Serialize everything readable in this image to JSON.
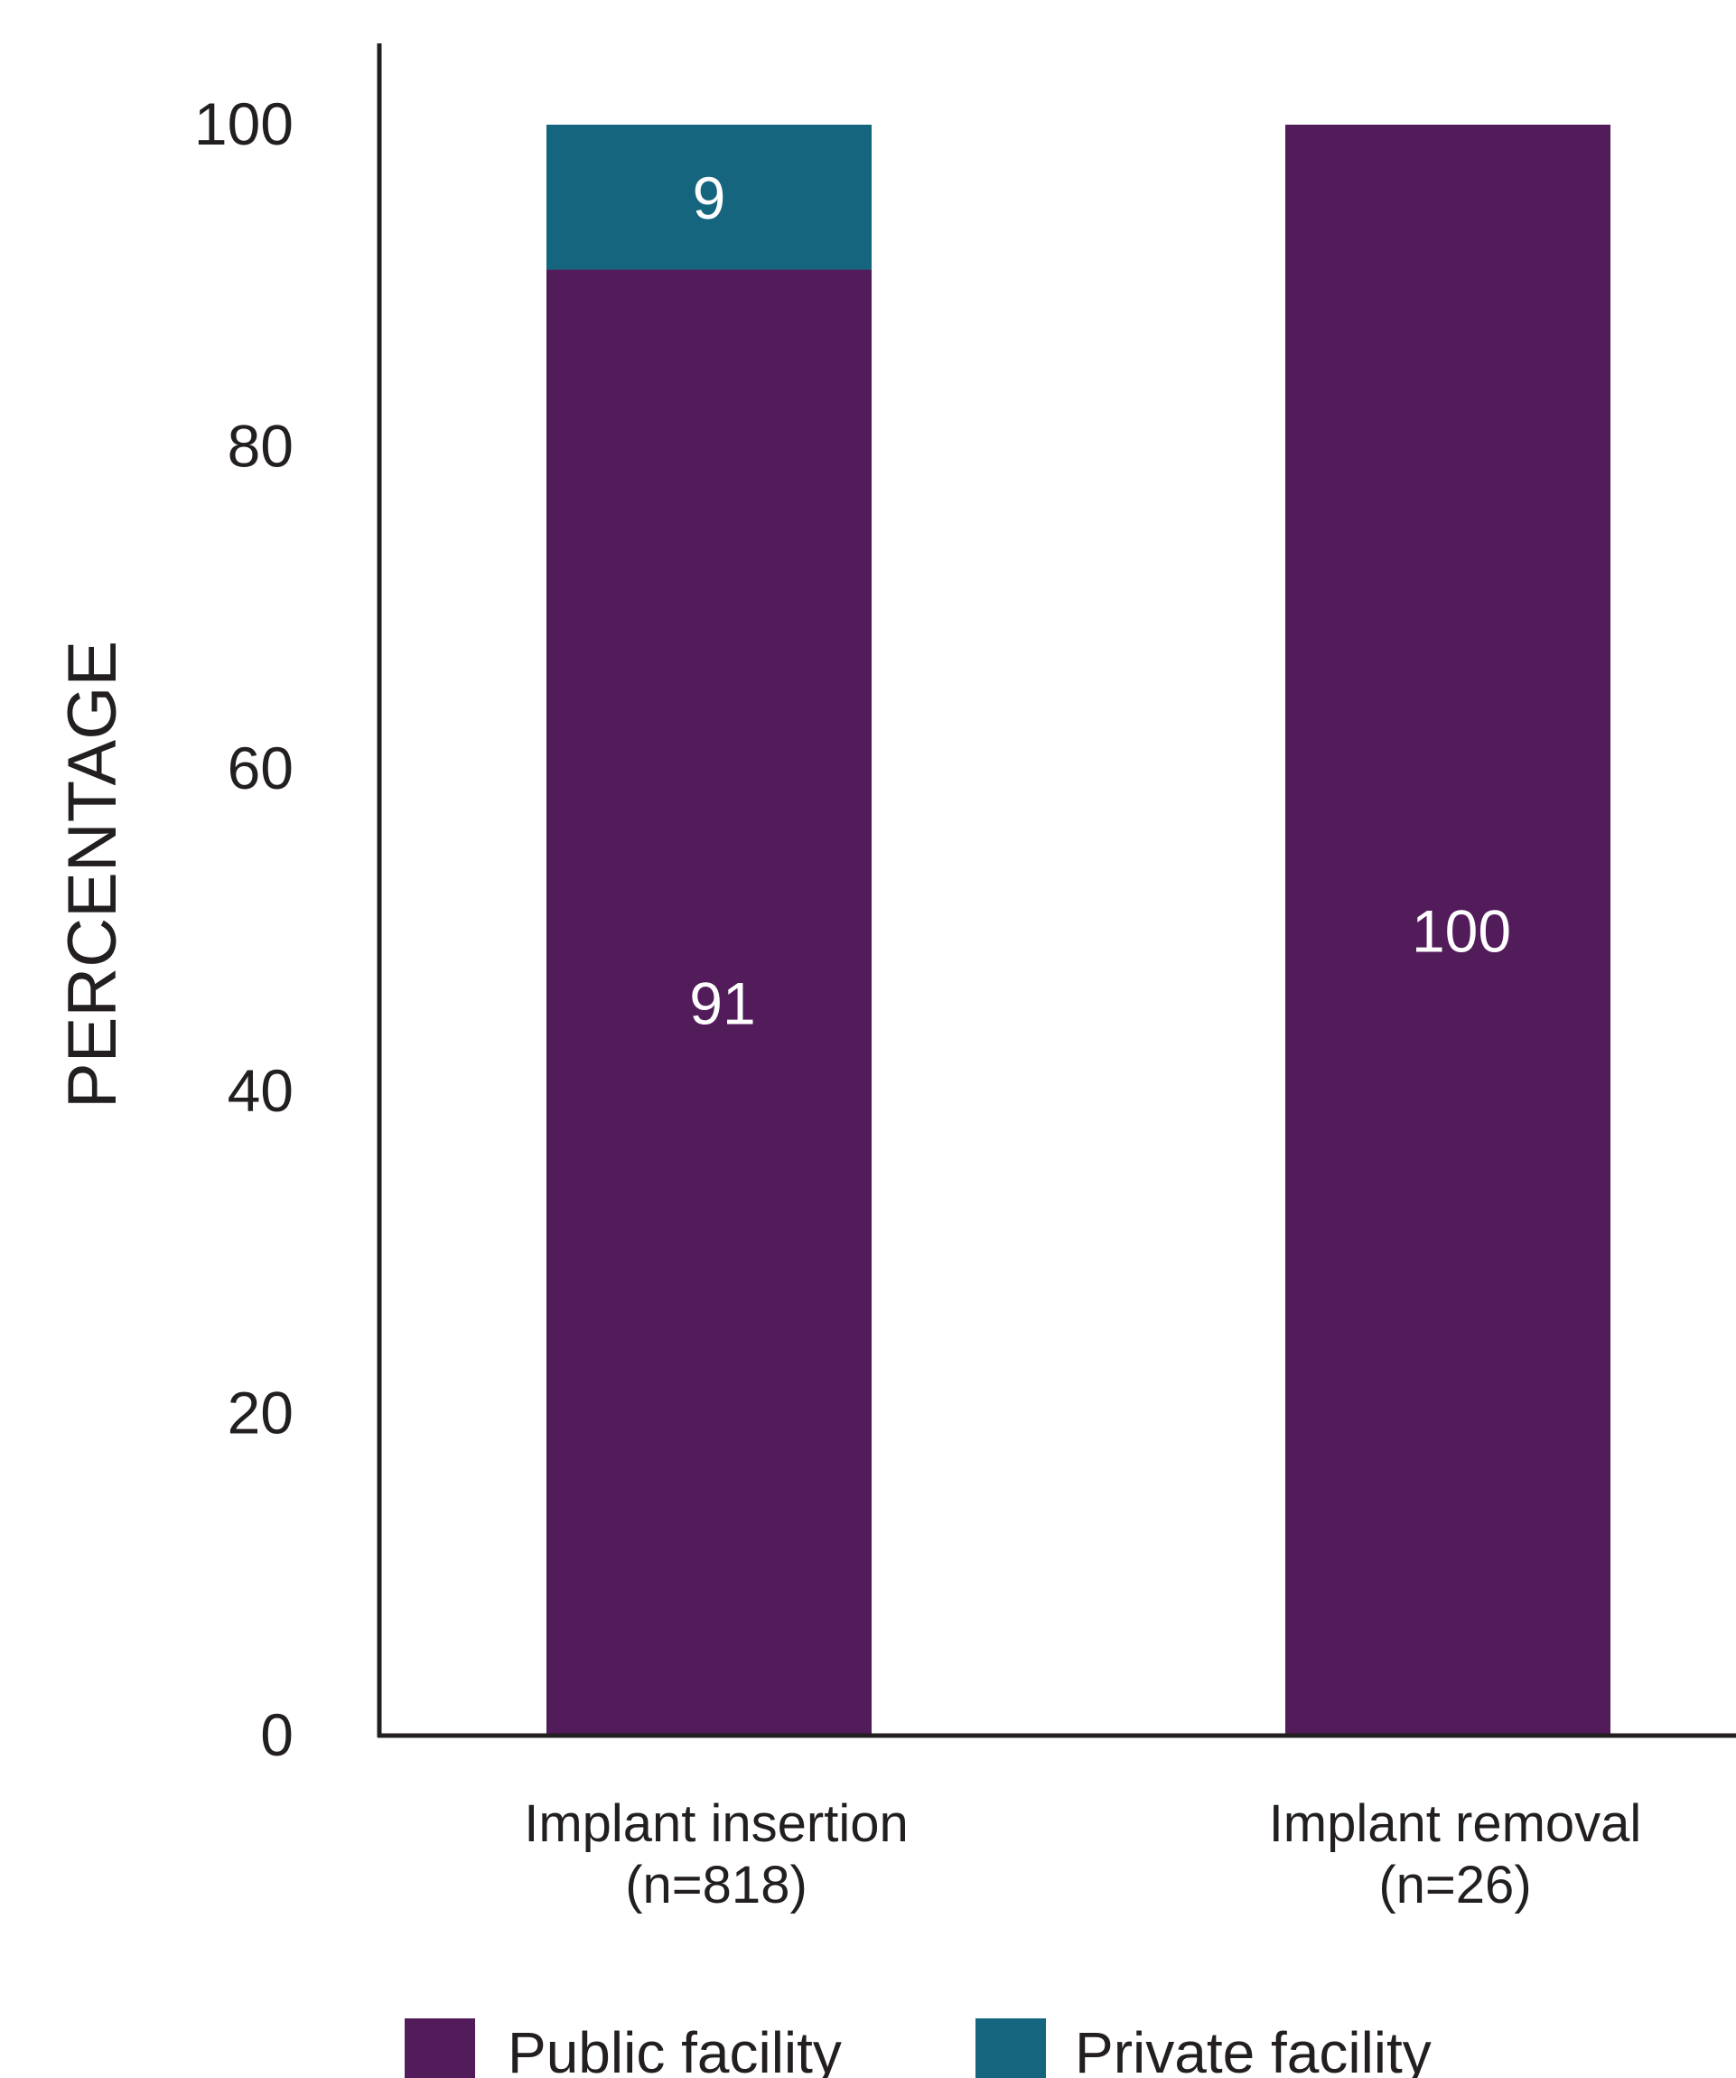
{
  "chart_data": {
    "type": "bar",
    "stacked": true,
    "categories": [
      [
        "Implant insertion",
        "(n=818)"
      ],
      [
        "Implant removal",
        "(n=26)"
      ]
    ],
    "series": [
      {
        "name": "Public facility",
        "values": [
          91,
          100
        ],
        "color": "#521b5a"
      },
      {
        "name": "Private facility",
        "values": [
          9,
          0
        ],
        "color": "#16657e"
      }
    ],
    "ylabel": "PERCENTAGE",
    "ylim": [
      0,
      100
    ],
    "yticks": [
      0,
      20,
      40,
      60,
      80,
      100
    ],
    "grid": false,
    "legend": "bottom"
  },
  "colors": {
    "axis": "#231f20",
    "label_text": "#ffffff",
    "background": "#ffffff"
  }
}
